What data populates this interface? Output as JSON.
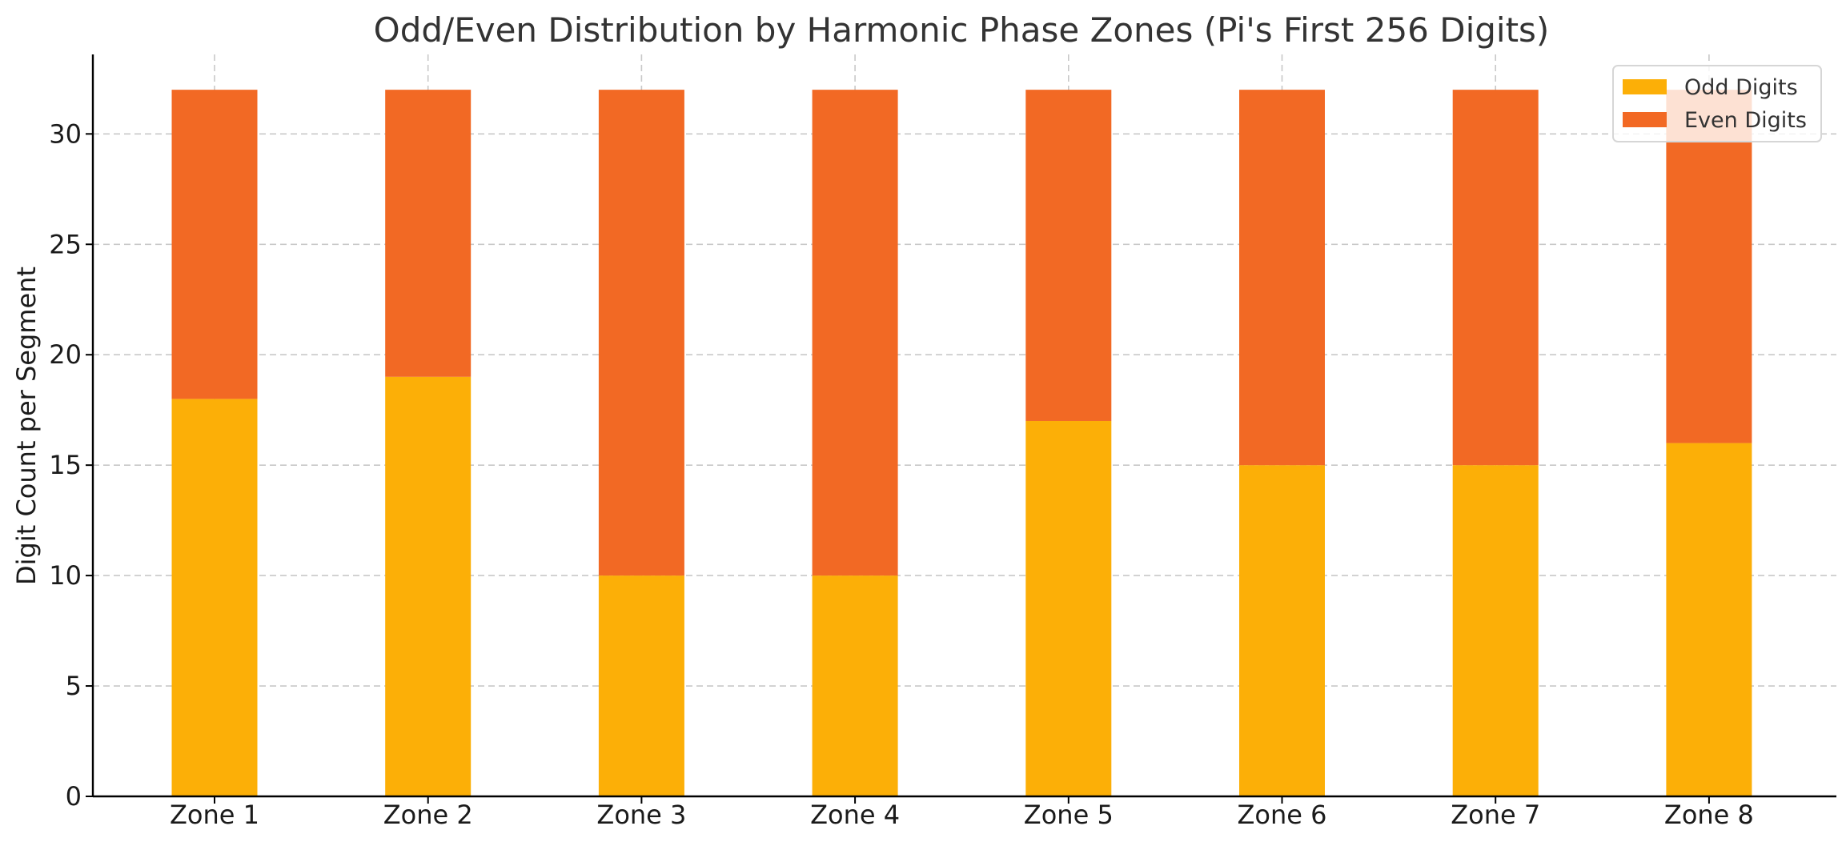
{
  "chart_data": {
    "type": "bar",
    "stacked": true,
    "title": "Odd/Even Distribution by Harmonic Phase Zones (Pi's First 256 Digits)",
    "xlabel": "",
    "ylabel": "Digit Count per Segment",
    "categories": [
      "Zone 1",
      "Zone 2",
      "Zone 3",
      "Zone 4",
      "Zone 5",
      "Zone 6",
      "Zone 7",
      "Zone 8"
    ],
    "series": [
      {
        "name": "Odd Digits",
        "values": [
          18,
          19,
          10,
          10,
          17,
          15,
          15,
          16
        ],
        "color": "#FCAF07"
      },
      {
        "name": "Even Digits",
        "values": [
          14,
          13,
          22,
          22,
          15,
          17,
          17,
          16
        ],
        "color": "#F26924"
      }
    ],
    "ylim": [
      0,
      33.6
    ],
    "yticks": [
      0,
      5,
      10,
      15,
      20,
      25,
      30
    ],
    "grid": true,
    "legend_position": "top-right"
  }
}
